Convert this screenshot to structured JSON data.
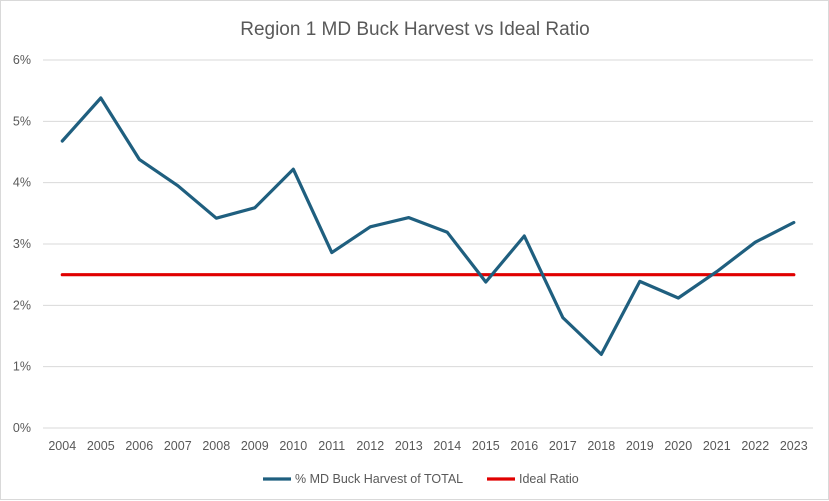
{
  "chart_data": {
    "type": "line",
    "title": "Region 1 MD Buck Harvest vs Ideal Ratio",
    "xlabel": "",
    "ylabel": "",
    "categories": [
      "2004",
      "2005",
      "2006",
      "2007",
      "2008",
      "2009",
      "2010",
      "2011",
      "2012",
      "2013",
      "2014",
      "2015",
      "2016",
      "2017",
      "2018",
      "2019",
      "2020",
      "2021",
      "2022",
      "2023"
    ],
    "ylim": [
      0,
      6
    ],
    "yticks": [
      0,
      1,
      2,
      3,
      4,
      5,
      6
    ],
    "ytick_labels": [
      "0%",
      "1%",
      "2%",
      "3%",
      "4%",
      "5%",
      "6%"
    ],
    "grid": true,
    "legend_position": "bottom",
    "series": [
      {
        "name": "% MD Buck Harvest of TOTAL",
        "color": "#1f5f7f",
        "values": [
          4.68,
          5.38,
          4.38,
          3.95,
          3.42,
          3.59,
          4.22,
          2.86,
          3.28,
          3.43,
          3.19,
          2.38,
          3.13,
          1.8,
          1.2,
          2.39,
          2.12,
          2.55,
          3.03,
          3.35
        ]
      },
      {
        "name": "Ideal Ratio",
        "color": "#e00000",
        "values": [
          2.5,
          2.5,
          2.5,
          2.5,
          2.5,
          2.5,
          2.5,
          2.5,
          2.5,
          2.5,
          2.5,
          2.5,
          2.5,
          2.5,
          2.5,
          2.5,
          2.5,
          2.5,
          2.5,
          2.5
        ]
      }
    ],
    "gridline_color": "#d9d9d9"
  }
}
